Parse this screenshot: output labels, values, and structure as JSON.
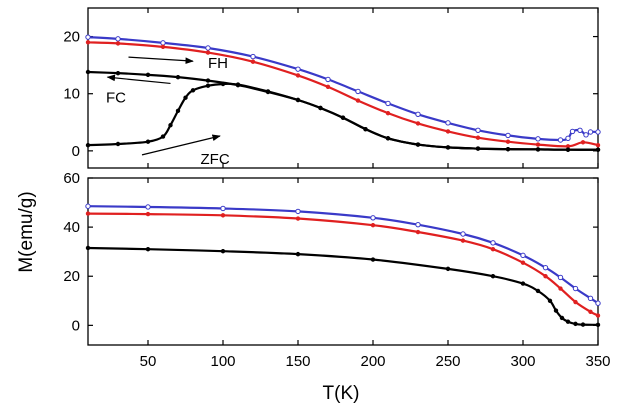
{
  "chart_data": {
    "type": "line",
    "shared_axes": {
      "xlabel": "T(K)",
      "ylabel": "M(emu/g)",
      "xlim": [
        10,
        350
      ],
      "xticks": [
        50,
        100,
        150,
        200,
        250,
        300,
        350
      ],
      "grid": false
    },
    "panels": [
      {
        "name": "top",
        "ylim": [
          -3,
          25
        ],
        "yticks": [
          0,
          10,
          20
        ],
        "series": [
          {
            "color": "#3a3ac8",
            "marker": "open-circle",
            "x": [
              10,
              30,
              60,
              90,
              120,
              150,
              170,
              190,
              210,
              230,
              250,
              270,
              290,
              310,
              325,
              330,
              333,
              338,
              342,
              345,
              350
            ],
            "y": [
              19.9,
              19.6,
              18.9,
              18.0,
              16.5,
              14.3,
              12.5,
              10.4,
              8.3,
              6.4,
              4.9,
              3.6,
              2.7,
              2.1,
              1.9,
              2.2,
              3.4,
              3.6,
              2.8,
              3.3,
              3.3
            ]
          },
          {
            "color": "#e02020",
            "marker": "filled-circle",
            "x": [
              10,
              30,
              60,
              90,
              120,
              150,
              170,
              190,
              210,
              230,
              250,
              270,
              290,
              310,
              330,
              340,
              350
            ],
            "y": [
              19.0,
              18.8,
              18.2,
              17.2,
              15.6,
              13.2,
              11.2,
              8.8,
              6.6,
              4.8,
              3.4,
              2.3,
              1.6,
              1.1,
              0.8,
              1.5,
              1.0
            ]
          },
          {
            "name": "FC",
            "color": "#000000",
            "marker": "filled-circle",
            "x": [
              10,
              30,
              50,
              70,
              90,
              110,
              130,
              150,
              165,
              180,
              195,
              210,
              230,
              250,
              270,
              290,
              310,
              330,
              350
            ],
            "y": [
              13.8,
              13.6,
              13.3,
              12.9,
              12.3,
              11.5,
              10.3,
              8.9,
              7.5,
              5.8,
              3.8,
              2.2,
              1.1,
              0.6,
              0.4,
              0.3,
              0.25,
              0.2,
              0.2
            ]
          },
          {
            "name": "ZFC",
            "color": "#000000",
            "marker": "filled-circle",
            "x": [
              10,
              30,
              50,
              60,
              65,
              70,
              75,
              80,
              90,
              100,
              110,
              130,
              150,
              165,
              180,
              195,
              210,
              230,
              250,
              270,
              290,
              310,
              330,
              350
            ],
            "y": [
              1.0,
              1.2,
              1.6,
              2.5,
              4.5,
              7.0,
              9.3,
              10.6,
              11.4,
              11.7,
              11.6,
              10.4,
              8.9,
              7.5,
              5.8,
              3.8,
              2.2,
              1.1,
              0.6,
              0.4,
              0.3,
              0.25,
              0.2,
              0.2
            ]
          }
        ],
        "annotations": [
          {
            "text": "FH",
            "arrow": {
              "from": [
                37,
                16.4
              ],
              "to": [
                80,
                15.7
              ]
            },
            "text_at": [
              90,
              15.4
            ]
          },
          {
            "text": "FC",
            "arrow": {
              "from": [
                65,
                11.8
              ],
              "to": [
                23,
                12.9
              ]
            },
            "text_at": [
              22,
              9.3
            ]
          },
          {
            "text": "ZFC",
            "arrow": {
              "from": [
                46,
                -0.7
              ],
              "to": [
                98,
                2.6
              ]
            },
            "text_at": [
              85,
              -1.4
            ]
          }
        ]
      },
      {
        "name": "bottom",
        "ylim": [
          -8,
          60
        ],
        "yticks": [
          0,
          20,
          40,
          60
        ],
        "series": [
          {
            "color": "#3a3ac8",
            "marker": "open-circle",
            "x": [
              10,
              50,
              100,
              150,
              200,
              230,
              260,
              280,
              300,
              315,
              325,
              335,
              345,
              350
            ],
            "y": [
              48.5,
              48.2,
              47.6,
              46.4,
              43.8,
              41.0,
              37.2,
              33.6,
              28.5,
              23.5,
              19.5,
              15.0,
              11.0,
              9.0
            ]
          },
          {
            "color": "#e02020",
            "marker": "filled-circle",
            "x": [
              10,
              50,
              100,
              150,
              200,
              230,
              260,
              280,
              300,
              315,
              325,
              335,
              345,
              350
            ],
            "y": [
              45.5,
              45.3,
              44.8,
              43.5,
              40.8,
              38.0,
              34.5,
              31.0,
              25.5,
              20.0,
              15.0,
              9.5,
              5.5,
              4.0
            ]
          },
          {
            "color": "#000000",
            "marker": "filled-circle",
            "x": [
              10,
              50,
              100,
              150,
              200,
              250,
              280,
              300,
              310,
              318,
              322,
              326,
              330,
              335,
              340,
              350
            ],
            "y": [
              31.5,
              31.0,
              30.2,
              29.0,
              26.8,
              23.0,
              20.0,
              17.0,
              14.0,
              10.0,
              6.0,
              3.0,
              1.5,
              0.6,
              0.3,
              0.2
            ]
          }
        ]
      }
    ]
  }
}
